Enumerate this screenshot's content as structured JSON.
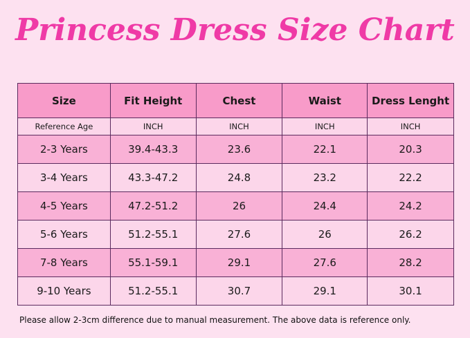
{
  "title": "Princess Dress Size Chart",
  "headers": [
    "Size",
    "Fit Height",
    "Chest",
    "Waist",
    "Dress Lenght"
  ],
  "units": [
    "Reference Age",
    "INCH",
    "INCH",
    "INCH",
    "INCH"
  ],
  "rows": [
    [
      "2-3 Years",
      "39.4-43.3",
      "23.6",
      "22.1",
      "20.3"
    ],
    [
      "3-4 Years",
      "43.3-47.2",
      "24.8",
      "23.2",
      "22.2"
    ],
    [
      "4-5 Years",
      "47.2-51.2",
      "26",
      "24.4",
      "24.2"
    ],
    [
      "5-6 Years",
      "51.2-55.1",
      "27.6",
      "26",
      "26.2"
    ],
    [
      "7-8 Years",
      "55.1-59.1",
      "29.1",
      "27.6",
      "28.2"
    ],
    [
      "9-10 Years",
      "51.2-55.1",
      "30.7",
      "29.1",
      "30.1"
    ]
  ],
  "note": "Please allow 2-3cm difference due to manual measurement. The above data is reference only.",
  "colors": {
    "title": "#ef3aa6",
    "header": "#f89bc9",
    "row_dark": "#f9b1d6",
    "row_light": "#fcd6ea",
    "background": "#fde1f0",
    "border": "#5a2a5e"
  }
}
